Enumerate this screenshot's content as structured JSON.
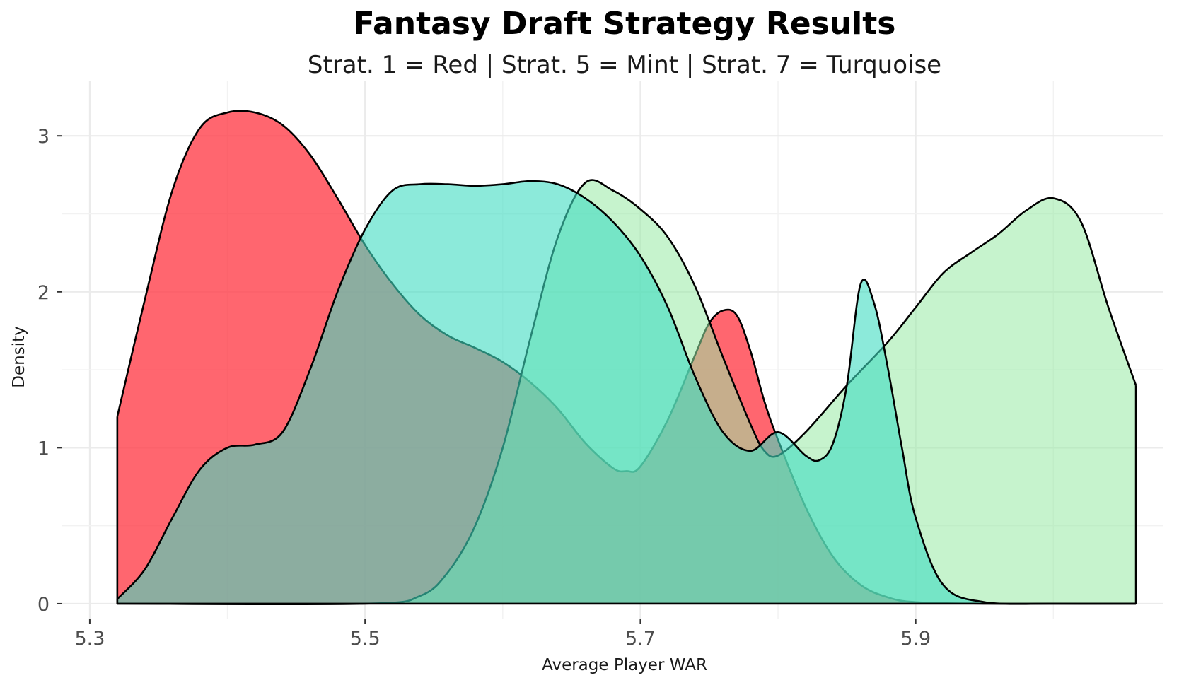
{
  "chart_data": {
    "type": "area",
    "title": "Fantasy Draft Strategy Results",
    "subtitle": "Strat. 1 = Red | Strat. 5 = Mint | Strat. 7 = Turquoise",
    "xlabel": "Average Player WAR",
    "ylabel": "Density",
    "xlim": [
      5.28,
      6.08
    ],
    "ylim": [
      -0.1,
      3.35
    ],
    "x_ticks": [
      {
        "value": 5.3,
        "label": "5.3"
      },
      {
        "value": 5.5,
        "label": "5.5"
      },
      {
        "value": 5.7,
        "label": "5.7"
      },
      {
        "value": 5.9,
        "label": "5.9"
      }
    ],
    "y_ticks": [
      {
        "value": 0,
        "label": "0"
      },
      {
        "value": 1,
        "label": "1"
      },
      {
        "value": 2,
        "label": "2"
      },
      {
        "value": 3,
        "label": "3"
      }
    ],
    "grid": true,
    "legend": "none",
    "series": [
      {
        "color": "#FF3B47",
        "opacity": 0.78,
        "points": [
          [
            5.32,
            1.2
          ],
          [
            5.34,
            1.95
          ],
          [
            5.36,
            2.65
          ],
          [
            5.38,
            3.05
          ],
          [
            5.4,
            3.15
          ],
          [
            5.42,
            3.15
          ],
          [
            5.44,
            3.07
          ],
          [
            5.46,
            2.88
          ],
          [
            5.48,
            2.6
          ],
          [
            5.5,
            2.3
          ],
          [
            5.52,
            2.05
          ],
          [
            5.54,
            1.85
          ],
          [
            5.56,
            1.72
          ],
          [
            5.58,
            1.64
          ],
          [
            5.6,
            1.55
          ],
          [
            5.62,
            1.42
          ],
          [
            5.64,
            1.25
          ],
          [
            5.66,
            1.03
          ],
          [
            5.68,
            0.87
          ],
          [
            5.69,
            0.85
          ],
          [
            5.7,
            0.88
          ],
          [
            5.72,
            1.18
          ],
          [
            5.74,
            1.6
          ],
          [
            5.75,
            1.8
          ],
          [
            5.76,
            1.88
          ],
          [
            5.77,
            1.85
          ],
          [
            5.78,
            1.62
          ],
          [
            5.79,
            1.3
          ],
          [
            5.8,
            1.05
          ],
          [
            5.82,
            0.62
          ],
          [
            5.84,
            0.3
          ],
          [
            5.86,
            0.12
          ],
          [
            5.88,
            0.04
          ],
          [
            5.9,
            0.01
          ],
          [
            5.95,
            0.0
          ],
          [
            6.0,
            0.0
          ],
          [
            6.06,
            0.0
          ]
        ]
      },
      {
        "color": "#98E9A4",
        "opacity": 0.55,
        "points": [
          [
            5.32,
            0.0
          ],
          [
            5.5,
            0.0
          ],
          [
            5.54,
            0.05
          ],
          [
            5.56,
            0.2
          ],
          [
            5.58,
            0.5
          ],
          [
            5.6,
            1.0
          ],
          [
            5.62,
            1.7
          ],
          [
            5.64,
            2.35
          ],
          [
            5.66,
            2.7
          ],
          [
            5.68,
            2.65
          ],
          [
            5.7,
            2.53
          ],
          [
            5.72,
            2.35
          ],
          [
            5.74,
            2.03
          ],
          [
            5.76,
            1.58
          ],
          [
            5.78,
            1.15
          ],
          [
            5.79,
            0.98
          ],
          [
            5.8,
            0.95
          ],
          [
            5.82,
            1.1
          ],
          [
            5.85,
            1.4
          ],
          [
            5.88,
            1.68
          ],
          [
            5.9,
            1.9
          ],
          [
            5.92,
            2.12
          ],
          [
            5.94,
            2.25
          ],
          [
            5.96,
            2.37
          ],
          [
            5.98,
            2.52
          ],
          [
            6.0,
            2.6
          ],
          [
            6.02,
            2.45
          ],
          [
            6.04,
            1.9
          ],
          [
            6.06,
            1.4
          ]
        ]
      },
      {
        "color": "#3FDCC2",
        "opacity": 0.6,
        "points": [
          [
            5.32,
            0.03
          ],
          [
            5.34,
            0.22
          ],
          [
            5.36,
            0.55
          ],
          [
            5.38,
            0.86
          ],
          [
            5.4,
            1.0
          ],
          [
            5.42,
            1.02
          ],
          [
            5.44,
            1.1
          ],
          [
            5.46,
            1.5
          ],
          [
            5.48,
            2.0
          ],
          [
            5.5,
            2.4
          ],
          [
            5.52,
            2.65
          ],
          [
            5.54,
            2.69
          ],
          [
            5.56,
            2.69
          ],
          [
            5.58,
            2.68
          ],
          [
            5.6,
            2.69
          ],
          [
            5.62,
            2.71
          ],
          [
            5.64,
            2.69
          ],
          [
            5.66,
            2.6
          ],
          [
            5.68,
            2.45
          ],
          [
            5.7,
            2.23
          ],
          [
            5.72,
            1.9
          ],
          [
            5.74,
            1.45
          ],
          [
            5.76,
            1.1
          ],
          [
            5.78,
            0.98
          ],
          [
            5.8,
            1.1
          ],
          [
            5.82,
            0.95
          ],
          [
            5.83,
            0.92
          ],
          [
            5.84,
            1.03
          ],
          [
            5.85,
            1.4
          ],
          [
            5.86,
            2.05
          ],
          [
            5.87,
            1.92
          ],
          [
            5.88,
            1.5
          ],
          [
            5.89,
            1.0
          ],
          [
            5.9,
            0.55
          ],
          [
            5.92,
            0.12
          ],
          [
            5.95,
            0.01
          ],
          [
            6.0,
            0.0
          ],
          [
            6.06,
            0.0
          ]
        ]
      }
    ]
  }
}
